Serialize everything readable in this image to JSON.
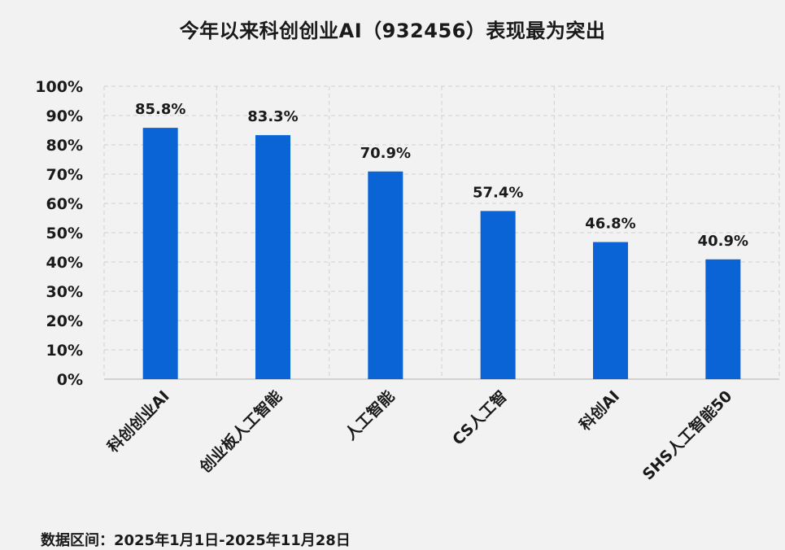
{
  "chart_data": {
    "type": "bar",
    "title": "今年以来科创创业AI（932456）表现最为突出",
    "categories": [
      "科创创业AI",
      "创业板人工智能",
      "人工智能",
      "CS人工智",
      "科创AI",
      "SHS人工智能50"
    ],
    "values": [
      85.8,
      83.3,
      70.9,
      57.4,
      46.8,
      40.9
    ],
    "data_labels": [
      "85.8%",
      "83.3%",
      "70.9%",
      "57.4%",
      "46.8%",
      "40.9%"
    ],
    "ylim": [
      0,
      100
    ],
    "y_ticks": [
      "0%",
      "10%",
      "20%",
      "30%",
      "40%",
      "50%",
      "60%",
      "70%",
      "80%",
      "90%",
      "100%"
    ],
    "y_tick_values": [
      0,
      10,
      20,
      30,
      40,
      50,
      60,
      70,
      80,
      90,
      100
    ],
    "xlabel": "",
    "ylabel": "",
    "grid": true,
    "bar_color": "#0a64d6",
    "grid_color": "#d0d0d0"
  },
  "footnote": "数据区间：2025年1月1日-2025年11月28日"
}
